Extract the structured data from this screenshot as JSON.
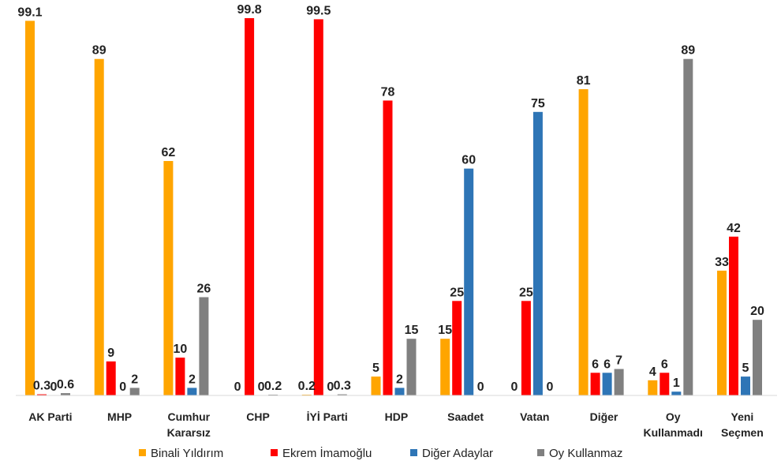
{
  "chart_data": {
    "type": "bar",
    "categories": [
      [
        "AK Parti"
      ],
      [
        "MHP"
      ],
      [
        "Cumhur",
        "Kararsız"
      ],
      [
        "CHP"
      ],
      [
        "İYİ Parti"
      ],
      [
        "HDP"
      ],
      [
        "Saadet"
      ],
      [
        "Vatan"
      ],
      [
        "Diğer"
      ],
      [
        "Oy",
        "Kullanmadı"
      ],
      [
        "Yeni",
        "Seçmen"
      ]
    ],
    "series": [
      {
        "name": "Binali Yıldırım",
        "color": "#FFA500",
        "values": [
          99.1,
          89,
          62,
          0,
          0.2,
          5,
          15,
          0,
          81,
          4,
          33
        ],
        "labels": [
          "99.1",
          "89",
          "62",
          "0",
          "0.2",
          "5",
          "15",
          "0",
          "81",
          "4",
          "33"
        ]
      },
      {
        "name": "Ekrem İmamoğlu",
        "color": "#FF0000",
        "values": [
          0.3,
          9,
          10,
          99.8,
          99.5,
          78,
          25,
          25,
          6,
          6,
          42
        ],
        "labels": [
          "0.3",
          "9",
          "10",
          "99.8",
          "99.5",
          "78",
          "25",
          "25",
          "6",
          "6",
          "42"
        ]
      },
      {
        "name": "Diğer Adaylar",
        "color": "#2E75B6",
        "values": [
          0,
          0,
          2,
          0,
          0,
          2,
          60,
          75,
          6,
          1,
          5
        ],
        "labels": [
          "0",
          "0",
          "2",
          "0",
          "0",
          "2",
          "60",
          "75",
          "6",
          "1",
          "5"
        ]
      },
      {
        "name": "Oy Kullanmaz",
        "color": "#808080",
        "values": [
          0.6,
          2,
          26,
          0.2,
          0.3,
          15,
          0,
          0,
          7,
          89,
          20
        ],
        "labels": [
          "0.6",
          "2",
          "26",
          "0.2",
          "0.3",
          "15",
          "0",
          "0",
          "7",
          "89",
          "20"
        ]
      }
    ],
    "ylim": [
      0,
      100
    ],
    "grid": false,
    "legend_position": "bottom"
  }
}
